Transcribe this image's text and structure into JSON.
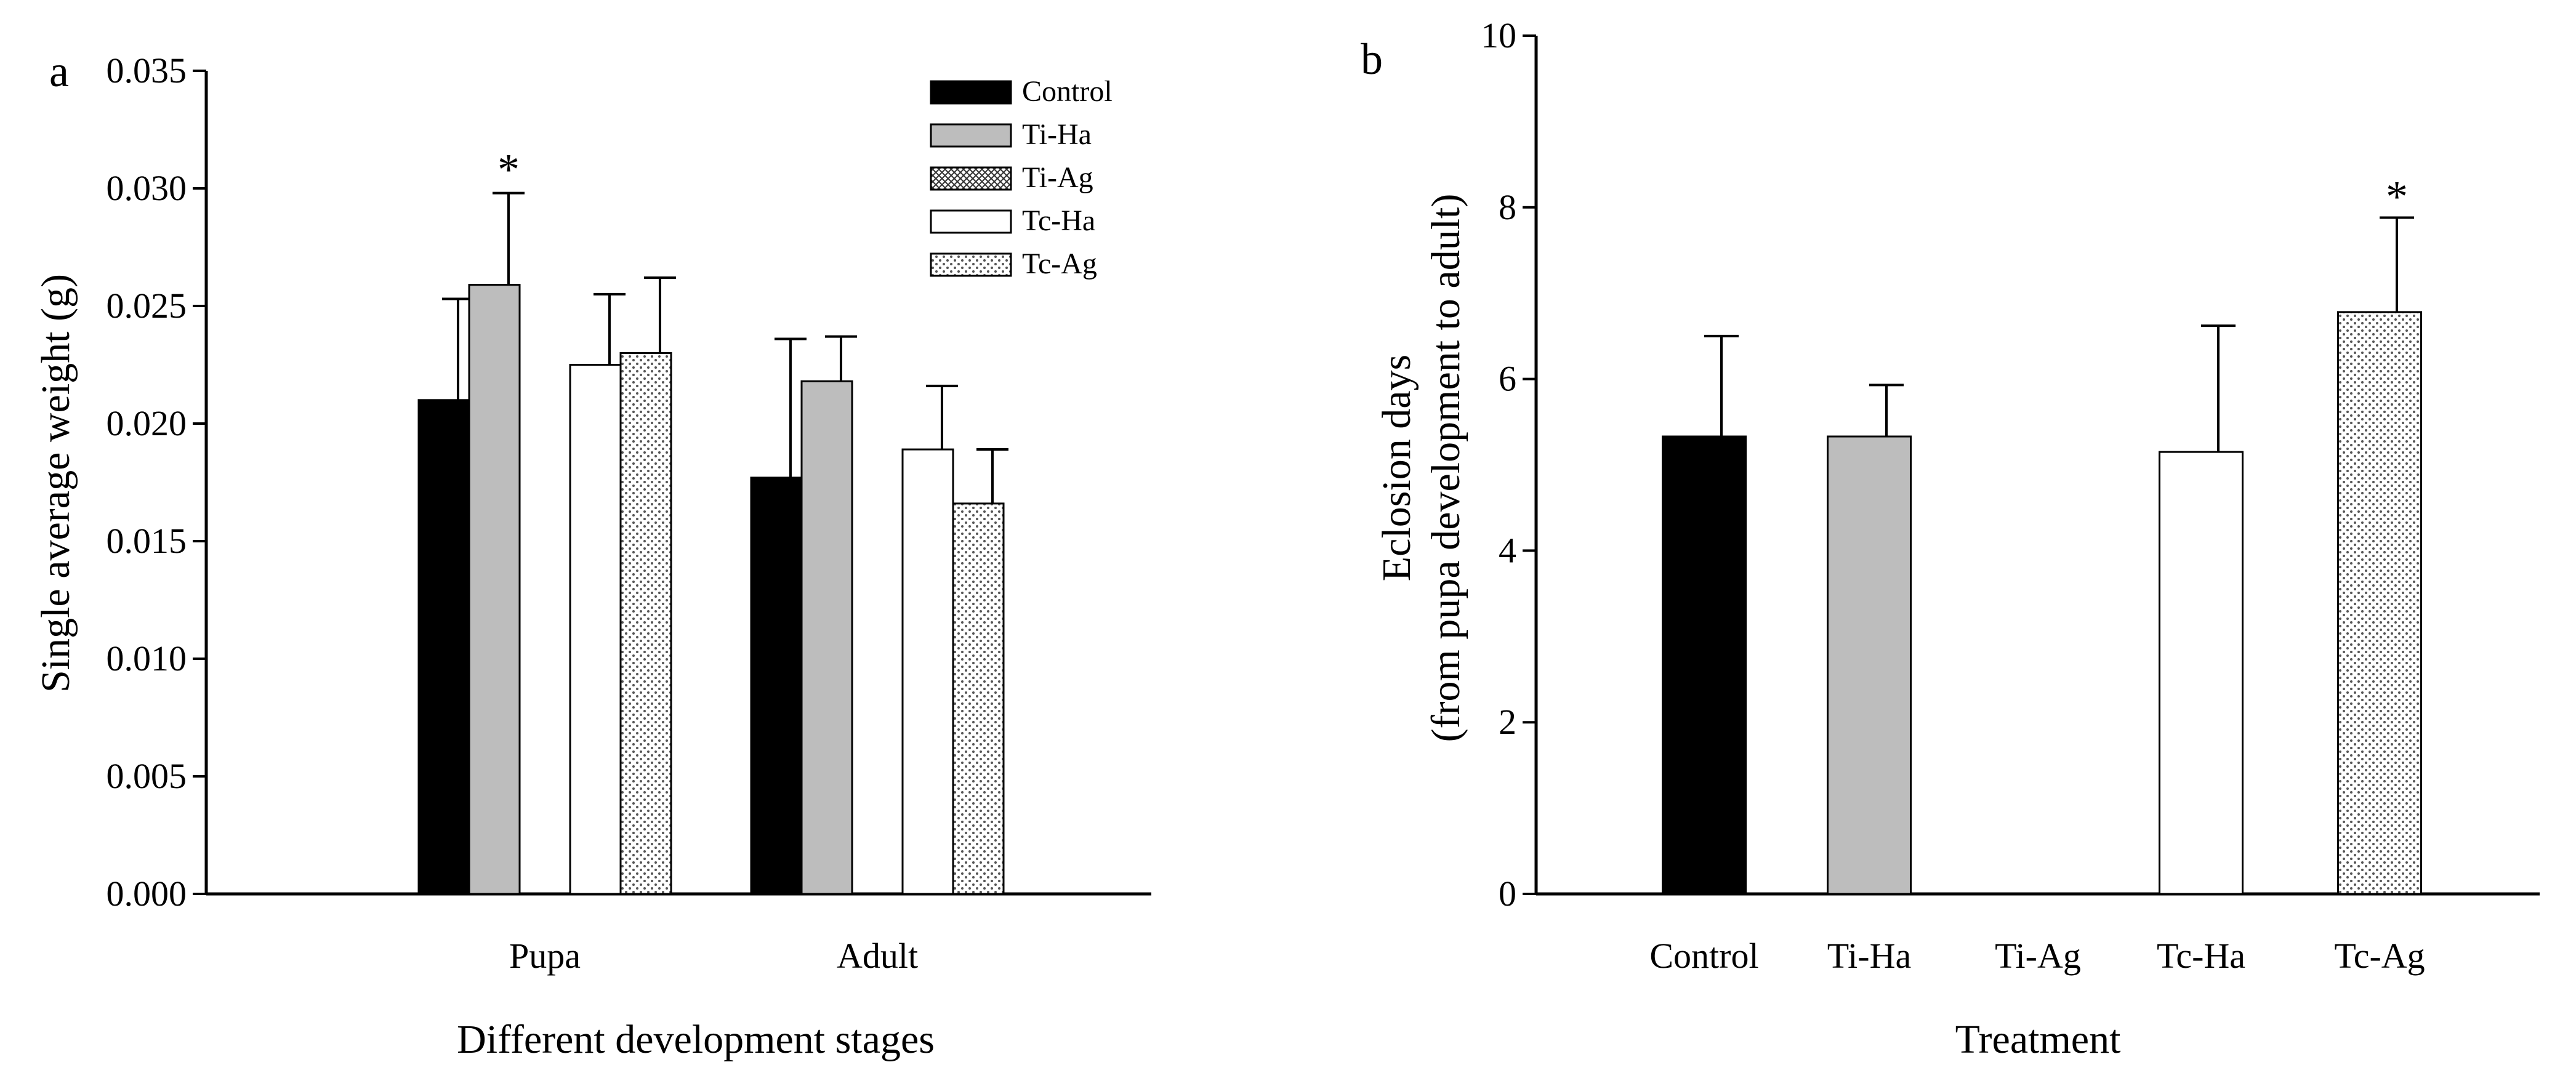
{
  "chart_data": [
    {
      "panel_label": "a",
      "type": "bar",
      "title": "",
      "xlabel": "Different development stages",
      "ylabel": "Single average weight (g)",
      "ylim": [
        0,
        0.035
      ],
      "yticks": [
        "0.000",
        "0.005",
        "0.010",
        "0.015",
        "0.020",
        "0.025",
        "0.030",
        "0.035"
      ],
      "categories": [
        "Pupa",
        "Adult"
      ],
      "legend_position": "top-right",
      "series": [
        {
          "name": "Control",
          "pattern": "solid-black",
          "values": [
            0.021,
            0.0177
          ],
          "errors": [
            0.0043,
            0.0059
          ],
          "significance": [
            "",
            ""
          ]
        },
        {
          "name": "Ti-Ha",
          "pattern": "solid-gray",
          "values": [
            0.0259,
            0.0218
          ],
          "errors": [
            0.0039,
            0.0019
          ],
          "significance": [
            "*",
            ""
          ]
        },
        {
          "name": "Ti-Ag",
          "pattern": "crosshatch",
          "values": [
            null,
            null
          ],
          "errors": [
            null,
            null
          ],
          "significance": [
            "",
            ""
          ]
        },
        {
          "name": "Tc-Ha",
          "pattern": "white",
          "values": [
            0.0225,
            0.0189
          ],
          "errors": [
            0.003,
            0.0027
          ],
          "significance": [
            "",
            ""
          ]
        },
        {
          "name": "Tc-Ag",
          "pattern": "dotted",
          "values": [
            0.023,
            0.0166
          ],
          "errors": [
            0.0032,
            0.0023
          ],
          "significance": [
            "",
            ""
          ]
        }
      ]
    },
    {
      "panel_label": "b",
      "type": "bar",
      "title": "",
      "xlabel": "Treatment",
      "ylabel_line1": "Eclosion days",
      "ylabel_line2": "(from pupa development to adult)",
      "ylim": [
        0,
        10
      ],
      "yticks": [
        "0",
        "2",
        "4",
        "6",
        "8",
        "10"
      ],
      "categories": [
        "Control",
        "Ti-Ha",
        "Ti-Ag",
        "Tc-Ha",
        "Tc-Ag"
      ],
      "patterns": [
        "solid-black",
        "solid-gray",
        "crosshatch",
        "white",
        "dotted"
      ],
      "values": [
        5.33,
        5.33,
        null,
        5.15,
        6.78
      ],
      "errors": [
        1.17,
        0.6,
        null,
        1.47,
        1.1
      ],
      "significance": [
        "",
        "",
        "",
        "",
        "*"
      ]
    }
  ]
}
